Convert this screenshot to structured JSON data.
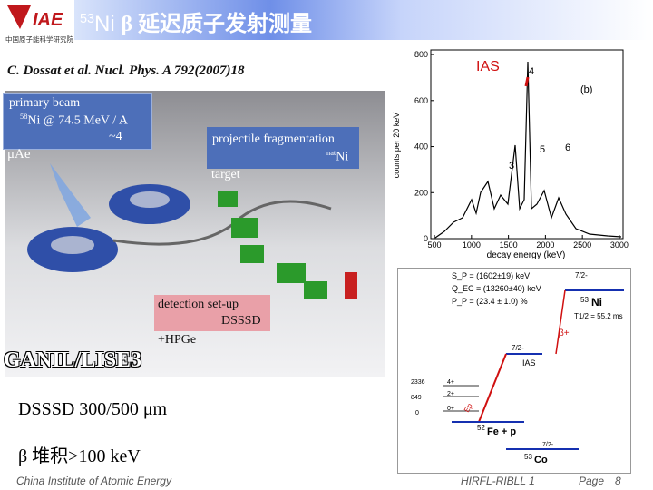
{
  "header": {
    "logo_text": "中国原子能科学研究院",
    "title_mass": "53",
    "title_element": "Ni",
    "title_rest": "β 延迟质子发射测量"
  },
  "reference": "C. Dossat et al. Nucl. Phys. A 792(2007)18",
  "setup": {
    "primary_beam": "primary beam",
    "beam_mass": "58",
    "beam_text": "Ni @ 74.5 MeV / A",
    "beam_current": "~4",
    "beam_unit": "μAe",
    "fragmentation": "projectile fragmentation",
    "target_mass": "nat",
    "target_element": "Ni",
    "target": "target",
    "detection": "detection set-up",
    "dsssd": "DSSSD",
    "hpge": "+HPGe",
    "facility": "GANIL/LISE3"
  },
  "bullets": [
    "DSSSD 300/500 μm",
    "β 堆积>100 keV"
  ],
  "spectrum": {
    "ias_label": "IAS",
    "panel": "(b)",
    "y_label": "counts per 20 keV",
    "x_label": "decay energy (keV)",
    "yticks": [
      0,
      200,
      400,
      600,
      800
    ],
    "xticks": [
      500,
      1000,
      1500,
      2000,
      2500,
      3000
    ],
    "ylim": [
      0,
      820
    ],
    "xlim": [
      450,
      3050
    ],
    "peaks": [
      "3",
      "4",
      "5",
      "6"
    ]
  },
  "level_scheme": {
    "sp": "S_P = (1602±19) keV",
    "qec": "Q_EC = (13260±40) keV",
    "pp": "P_P = (23.4 ± 1.0) %",
    "parent_mass": "53",
    "parent": "Ni",
    "half_life": "T1/2 = 55.2 ms",
    "parent_spin": "7/2-",
    "beta": "β+",
    "ias": "IAS",
    "ias_spin": "7/2-",
    "levels": [
      [
        "2336",
        "4+"
      ],
      [
        "849",
        "2+"
      ],
      [
        "0",
        "0+"
      ]
    ],
    "daughter_mass": "52",
    "daughter": "Fe + p",
    "ep": "Ep",
    "final_mass": "53",
    "final": "Co",
    "final_spin": "7/2-"
  },
  "footer": {
    "institute": "China Institute of Atomic Energy",
    "project": "HIRFL-RIBLL 1",
    "page_label": "Page",
    "page": 8
  }
}
